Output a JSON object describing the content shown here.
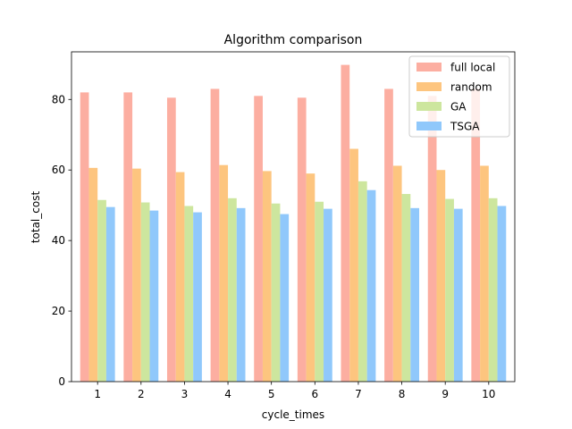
{
  "chart_data": {
    "type": "bar",
    "title": "Algorithm comparison",
    "xlabel": "cycle_times",
    "ylabel": "total_cost",
    "categories": [
      "1",
      "2",
      "3",
      "4",
      "5",
      "6",
      "7",
      "8",
      "9",
      "10"
    ],
    "ylim": [
      0,
      93.5
    ],
    "yticks": [
      0,
      20,
      40,
      60,
      80
    ],
    "grid": false,
    "legend_position": "top-right",
    "series": [
      {
        "name": "full local",
        "color": "#fcaea1",
        "values": [
          82.0,
          82.0,
          80.5,
          83.0,
          81.0,
          80.5,
          89.8,
          83.0,
          81.0,
          83.0
        ]
      },
      {
        "name": "random",
        "color": "#fdc57f",
        "values": [
          60.6,
          60.4,
          59.4,
          61.4,
          59.7,
          59.0,
          66.0,
          61.2,
          60.0,
          61.2
        ]
      },
      {
        "name": "GA",
        "color": "#cde69e",
        "values": [
          51.5,
          50.8,
          49.8,
          52.0,
          50.5,
          51.0,
          56.8,
          53.2,
          51.8,
          52.0
        ]
      },
      {
        "name": "TSGA",
        "color": "#90c8fb",
        "values": [
          49.5,
          48.5,
          48.0,
          49.2,
          47.5,
          49.0,
          54.3,
          49.2,
          49.0,
          49.8
        ]
      }
    ]
  }
}
